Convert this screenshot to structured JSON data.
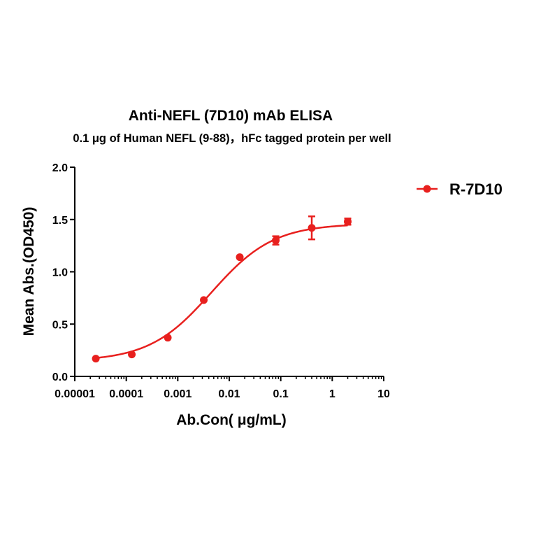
{
  "chart_data": {
    "type": "scatter",
    "title": "Anti-NEFL (7D10) mAb ELISA",
    "subtitle": "0.1 μg of Human NEFL (9-88)，hFc tagged protein per well",
    "xlabel": "Ab.Con( μg/mL)",
    "ylabel": "Mean Abs.(OD450)",
    "x_scale": "log",
    "xlim": [
      1e-05,
      10
    ],
    "ylim": [
      0,
      2.0
    ],
    "x_ticks": [
      {
        "value": 1e-05,
        "label": "0.00001"
      },
      {
        "value": 0.0001,
        "label": "0.0001"
      },
      {
        "value": 0.001,
        "label": "0.001"
      },
      {
        "value": 0.01,
        "label": "0.01"
      },
      {
        "value": 0.1,
        "label": "0.1"
      },
      {
        "value": 1,
        "label": "1"
      },
      {
        "value": 10,
        "label": "10"
      }
    ],
    "y_ticks": [
      {
        "value": 0.0,
        "label": "0.0"
      },
      {
        "value": 0.5,
        "label": "0.5"
      },
      {
        "value": 1.0,
        "label": "1.0"
      },
      {
        "value": 1.5,
        "label": "1.5"
      },
      {
        "value": 2.0,
        "label": "2.0"
      }
    ],
    "grid": false,
    "legend_position": "top-right",
    "series": [
      {
        "name": "R-7D10",
        "color": "#e8201e",
        "x": [
          2.56e-05,
          0.000128,
          0.00064,
          0.0032,
          0.016,
          0.08,
          0.4,
          2
        ],
        "y": [
          0.17,
          0.21,
          0.37,
          0.73,
          1.14,
          1.3,
          1.42,
          1.48
        ],
        "error": [
          0.0,
          0.0,
          0.0,
          0.0,
          0.0,
          0.04,
          0.11,
          0.03
        ],
        "fit": {
          "type": "4PL",
          "bottom": 0.145,
          "top": 1.46,
          "ec50": 0.0045,
          "hill": 0.72
        }
      }
    ]
  }
}
